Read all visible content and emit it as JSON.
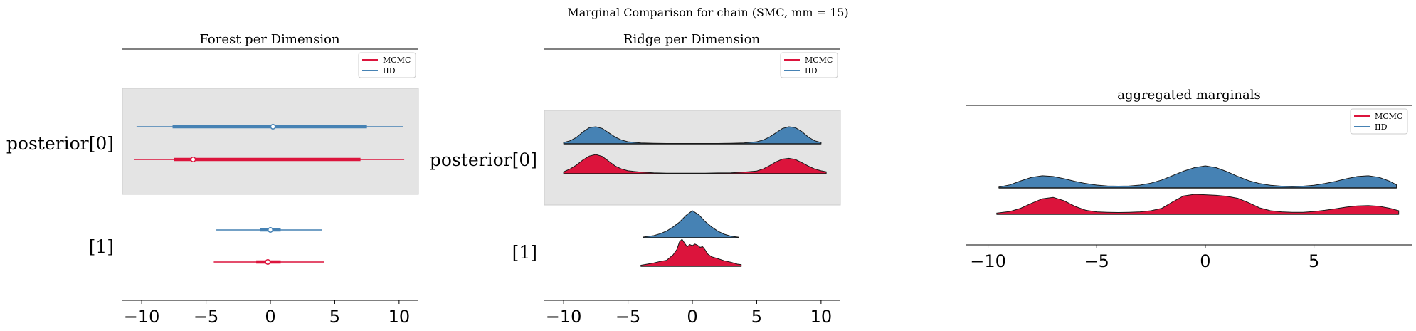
{
  "figure": {
    "suptitle": "Marginal Comparison for chain (SMC, mm = 15)"
  },
  "colors": {
    "mcmc": "#dc143c",
    "iid": "#4682b4",
    "band": "#e4e4e4",
    "axis": "#000000"
  },
  "chart_data": [
    {
      "type": "forest",
      "title": "Forest per Dimension",
      "xlim": [
        -11.5,
        11.5
      ],
      "xticks": [
        -10,
        -5,
        0,
        5,
        10
      ],
      "xtick_labels": [
        "−10",
        "−5",
        "0",
        "5",
        "10"
      ],
      "row_labels": [
        "posterior[0]",
        "[1]"
      ],
      "highlight_row": 0,
      "legend": {
        "position": "top-right",
        "entries": [
          "MCMC",
          "IID"
        ]
      },
      "series": [
        {
          "name": "MCMC",
          "color": "#dc143c",
          "intervals": [
            {
              "row": 0,
              "hdi": [
                -10.6,
                10.4
              ],
              "iqr": [
                -7.5,
                7.0
              ],
              "point": -6.0
            },
            {
              "row": 1,
              "hdi": [
                -4.4,
                4.2
              ],
              "iqr": [
                -1.1,
                0.8
              ],
              "point": -0.2
            }
          ]
        },
        {
          "name": "IID",
          "color": "#4682b4",
          "intervals": [
            {
              "row": 0,
              "hdi": [
                -10.4,
                10.3
              ],
              "iqr": [
                -7.6,
                7.5
              ],
              "point": 0.2
            },
            {
              "row": 1,
              "hdi": [
                -4.2,
                4.0
              ],
              "iqr": [
                -0.8,
                0.8
              ],
              "point": 0.0
            }
          ]
        }
      ]
    },
    {
      "type": "ridge",
      "title": "Ridge per Dimension",
      "xlim": [
        -11.5,
        11.5
      ],
      "xticks": [
        -10,
        -5,
        0,
        5,
        10
      ],
      "xtick_labels": [
        "−10",
        "−5",
        "0",
        "5",
        "10"
      ],
      "row_labels": [
        "posterior[0]",
        "[1]"
      ],
      "highlight_row": 0,
      "legend": {
        "position": "top-right",
        "entries": [
          "MCMC",
          "IID"
        ]
      },
      "series": [
        {
          "name": "IID",
          "color": "#4682b4",
          "densities": [
            {
              "row": 0,
              "x": [
                -10.0,
                -9.5,
                -9.0,
                -8.5,
                -8.0,
                -7.5,
                -7.0,
                -6.5,
                -6.0,
                -5.5,
                -5.0,
                -4.0,
                -3.0,
                -2.0,
                -1.0,
                0.0,
                1.0,
                2.0,
                3.0,
                4.0,
                5.0,
                5.5,
                6.0,
                6.5,
                7.0,
                7.5,
                8.0,
                8.5,
                9.0,
                9.5,
                10.0
              ],
              "y": [
                0.08,
                0.18,
                0.38,
                0.7,
                0.95,
                1.0,
                0.9,
                0.65,
                0.4,
                0.22,
                0.12,
                0.05,
                0.03,
                0.02,
                0.02,
                0.02,
                0.02,
                0.02,
                0.03,
                0.05,
                0.12,
                0.22,
                0.4,
                0.65,
                0.9,
                1.0,
                0.95,
                0.72,
                0.4,
                0.18,
                0.08
              ]
            },
            {
              "row": 1,
              "x": [
                -3.8,
                -3.0,
                -2.5,
                -2.0,
                -1.5,
                -1.0,
                -0.5,
                0.0,
                0.5,
                1.0,
                1.5,
                2.0,
                2.5,
                3.0,
                3.6
              ],
              "y": [
                0.03,
                0.08,
                0.15,
                0.25,
                0.4,
                0.58,
                0.82,
                1.0,
                0.85,
                0.6,
                0.4,
                0.24,
                0.13,
                0.06,
                0.02
              ]
            }
          ]
        },
        {
          "name": "MCMC",
          "color": "#dc143c",
          "densities": [
            {
              "row": 0,
              "x": [
                -10.0,
                -9.5,
                -9.0,
                -8.5,
                -8.0,
                -7.5,
                -7.0,
                -6.5,
                -6.0,
                -5.5,
                -5.0,
                -4.0,
                -3.0,
                -2.0,
                -1.0,
                0.0,
                1.0,
                2.0,
                3.0,
                4.0,
                5.0,
                5.5,
                6.0,
                6.5,
                7.0,
                7.5,
                8.0,
                8.5,
                9.0,
                9.5,
                10.0,
                10.4
              ],
              "y": [
                0.1,
                0.25,
                0.45,
                0.72,
                0.92,
                1.0,
                0.9,
                0.65,
                0.4,
                0.25,
                0.15,
                0.08,
                0.05,
                0.03,
                0.03,
                0.03,
                0.03,
                0.04,
                0.05,
                0.08,
                0.14,
                0.25,
                0.42,
                0.62,
                0.76,
                0.8,
                0.74,
                0.58,
                0.4,
                0.25,
                0.15,
                0.1
              ]
            },
            {
              "row": 1,
              "x": [
                -4.0,
                -3.5,
                -3.0,
                -2.5,
                -2.0,
                -1.5,
                -1.2,
                -1.0,
                -0.8,
                -0.6,
                -0.4,
                -0.2,
                0.0,
                0.2,
                0.4,
                0.6,
                0.8,
                1.0,
                1.2,
                1.5,
                2.0,
                2.5,
                3.0,
                3.5,
                3.8
              ],
              "y": [
                0.04,
                0.08,
                0.12,
                0.18,
                0.22,
                0.42,
                0.62,
                0.9,
                1.0,
                0.85,
                0.72,
                0.8,
                0.76,
                0.82,
                0.78,
                0.7,
                0.72,
                0.6,
                0.45,
                0.35,
                0.28,
                0.2,
                0.15,
                0.08,
                0.06
              ]
            }
          ]
        }
      ]
    },
    {
      "type": "area",
      "title": "aggregated marginals",
      "xlim": [
        -11.0,
        9.5
      ],
      "xticks": [
        -10,
        -5,
        0,
        5
      ],
      "xtick_labels": [
        "−10",
        "−5",
        "0",
        "5"
      ],
      "legend": {
        "position": "top-right",
        "entries": [
          "MCMC",
          "IID"
        ]
      },
      "series": [
        {
          "name": "IID",
          "color": "#4682b4",
          "x": [
            -9.5,
            -9.0,
            -8.5,
            -8.0,
            -7.5,
            -7.0,
            -6.5,
            -6.0,
            -5.5,
            -5.0,
            -4.5,
            -4.0,
            -3.5,
            -3.0,
            -2.5,
            -2.0,
            -1.5,
            -1.0,
            -0.5,
            0.0,
            0.5,
            1.0,
            1.5,
            2.0,
            2.5,
            3.0,
            3.5,
            4.0,
            4.5,
            5.0,
            5.5,
            6.0,
            6.5,
            7.0,
            7.5,
            8.0,
            8.5,
            8.8
          ],
          "y": [
            0.04,
            0.14,
            0.32,
            0.48,
            0.55,
            0.52,
            0.42,
            0.3,
            0.2,
            0.13,
            0.09,
            0.08,
            0.09,
            0.13,
            0.22,
            0.36,
            0.56,
            0.76,
            0.92,
            1.0,
            0.92,
            0.74,
            0.52,
            0.33,
            0.2,
            0.12,
            0.08,
            0.06,
            0.08,
            0.12,
            0.2,
            0.3,
            0.42,
            0.52,
            0.55,
            0.48,
            0.3,
            0.14
          ]
        },
        {
          "name": "MCMC",
          "color": "#dc143c",
          "x": [
            -9.6,
            -9.0,
            -8.5,
            -8.0,
            -7.5,
            -7.0,
            -6.5,
            -6.0,
            -5.5,
            -5.0,
            -4.5,
            -4.0,
            -3.5,
            -3.0,
            -2.5,
            -2.0,
            -1.5,
            -1.0,
            -0.5,
            0.0,
            0.5,
            1.0,
            1.5,
            2.0,
            2.5,
            3.0,
            3.5,
            4.0,
            4.5,
            5.0,
            5.5,
            6.0,
            6.5,
            7.0,
            7.5,
            8.0,
            8.5,
            8.9
          ],
          "y": [
            0.06,
            0.14,
            0.3,
            0.55,
            0.78,
            0.85,
            0.68,
            0.4,
            0.2,
            0.12,
            0.1,
            0.09,
            0.1,
            0.12,
            0.18,
            0.3,
            0.62,
            0.92,
            1.0,
            0.98,
            0.95,
            0.9,
            0.8,
            0.58,
            0.32,
            0.18,
            0.12,
            0.1,
            0.1,
            0.14,
            0.2,
            0.28,
            0.36,
            0.42,
            0.44,
            0.4,
            0.3,
            0.18
          ]
        }
      ]
    }
  ]
}
